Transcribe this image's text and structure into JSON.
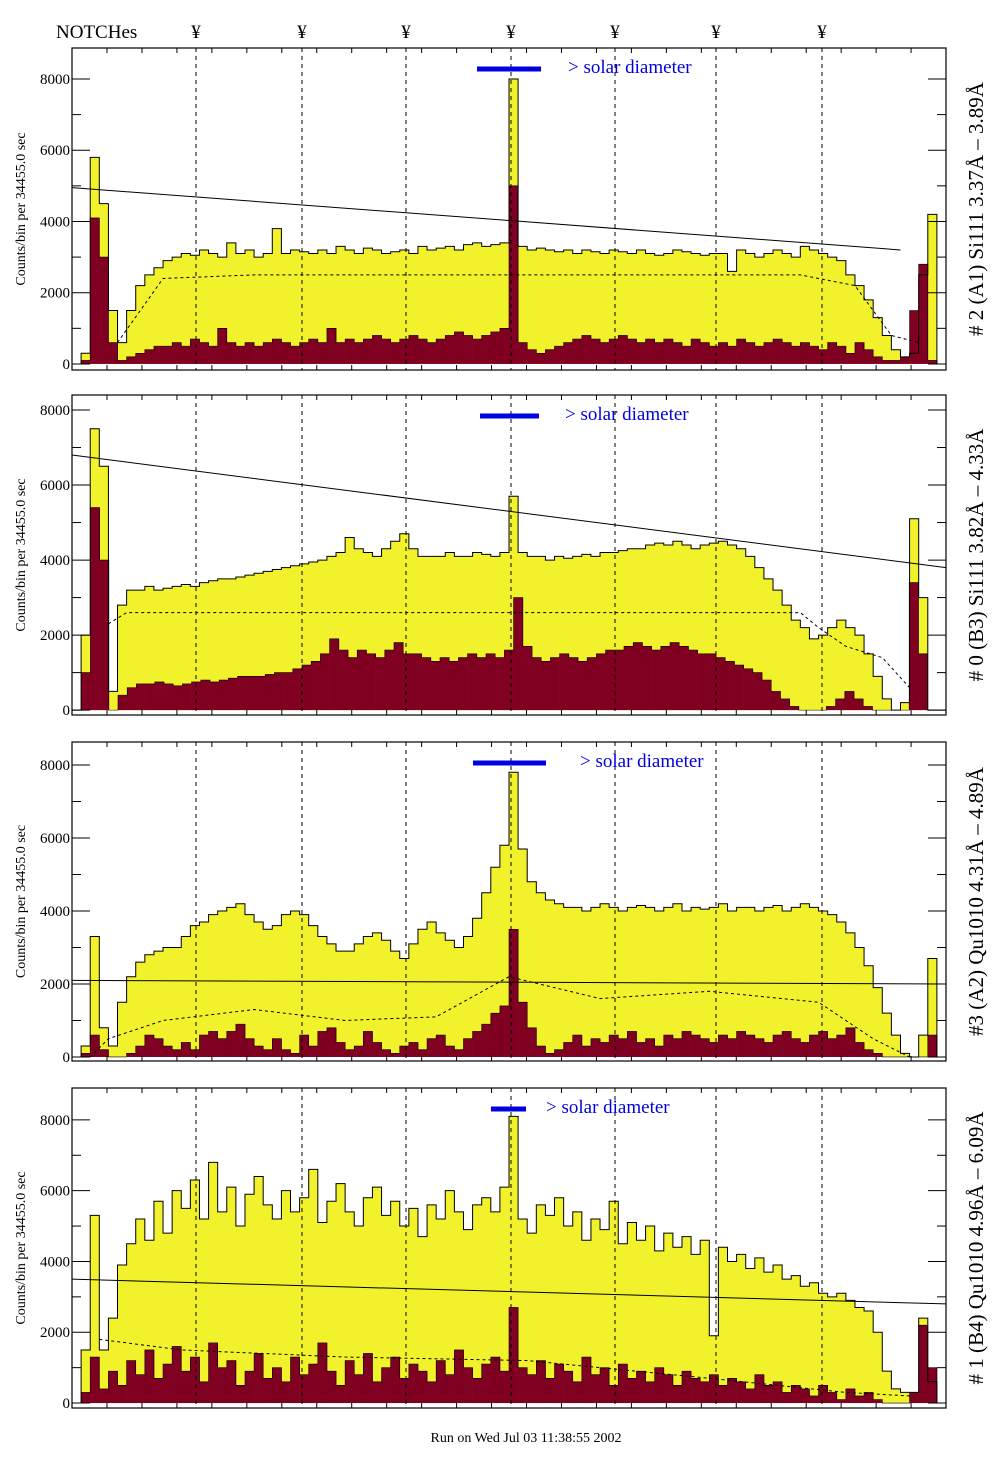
{
  "header": {
    "notches_label": "NOTCHes",
    "notch_symbol": "¥"
  },
  "footer": {
    "run_text": "Run on Wed Jul 03 11:38:55 2002"
  },
  "colors": {
    "total": "#f2f22c",
    "selected": "#7f0020",
    "solar_bar": "#0000e0"
  },
  "chart_data": [
    {
      "type": "bar",
      "panel_label": "# 2 (A1) Si111  3.37Å – 3.89Å",
      "ylabel": "Counts/bin per  34455.0 sec",
      "solar_label": "> solar diameter",
      "yticks": [
        "0",
        "2000",
        "4000",
        "6000",
        "8000"
      ],
      "ylim": [
        -170,
        8870
      ],
      "total": [
        0,
        300,
        5800,
        4500,
        1500,
        600,
        1500,
        2200,
        2500,
        2700,
        2900,
        3000,
        3100,
        3050,
        3200,
        3100,
        3000,
        3400,
        3100,
        3200,
        3000,
        3100,
        3800,
        3100,
        3200,
        3150,
        3100,
        3200,
        3100,
        3300,
        3200,
        3100,
        3250,
        3200,
        3100,
        3150,
        3200,
        3100,
        3300,
        3200,
        3250,
        3300,
        3200,
        3350,
        3400,
        3300,
        3350,
        3400,
        8000,
        3300,
        3200,
        3250,
        3200,
        3150,
        3200,
        3100,
        3200,
        3150,
        3100,
        3200,
        3150,
        3100,
        3200,
        3100,
        3050,
        3100,
        3200,
        3150,
        3100,
        3050,
        3100,
        3100,
        2600,
        3200,
        3100,
        3000,
        3100,
        3200,
        3100,
        3000,
        3300,
        3200,
        3100,
        3000,
        2900,
        2500,
        2200,
        1800,
        1300,
        800,
        400,
        200,
        300,
        2500,
        4200,
        0
      ],
      "selected": [
        0,
        100,
        4100,
        3000,
        600,
        100,
        200,
        300,
        400,
        500,
        500,
        600,
        500,
        700,
        600,
        500,
        1000,
        600,
        500,
        600,
        500,
        600,
        700,
        600,
        500,
        600,
        700,
        600,
        1000,
        600,
        700,
        600,
        700,
        800,
        700,
        600,
        700,
        800,
        700,
        600,
        700,
        800,
        900,
        800,
        700,
        800,
        900,
        1000,
        5000,
        600,
        400,
        300,
        400,
        500,
        600,
        700,
        800,
        700,
        600,
        700,
        800,
        700,
        600,
        700,
        600,
        700,
        600,
        500,
        700,
        600,
        500,
        600,
        500,
        700,
        600,
        500,
        600,
        700,
        600,
        500,
        600,
        500,
        400,
        600,
        500,
        300,
        600,
        400,
        200,
        100,
        100,
        200,
        1500,
        2800,
        100,
        0
      ],
      "fit_line": [
        [
          0,
          4950
        ],
        [
          91,
          3200
        ]
      ],
      "dashed_curve": [
        [
          5,
          600
        ],
        [
          10,
          2400
        ],
        [
          20,
          2500
        ],
        [
          50,
          2500
        ],
        [
          80,
          2500
        ],
        [
          86,
          2200
        ],
        [
          90,
          800
        ],
        [
          93,
          600
        ]
      ]
    },
    {
      "type": "bar",
      "panel_label": "# 0 (B3) Si111  3.82Å – 4.33Å",
      "ylabel": "Counts/bin per  34455.0 sec",
      "solar_label": "> solar diameter",
      "yticks": [
        "0",
        "2000",
        "4000",
        "6000",
        "8000"
      ],
      "ylim": [
        -130,
        8400
      ],
      "total": [
        0,
        2000,
        7500,
        6500,
        500,
        2800,
        3200,
        3200,
        3300,
        3200,
        3250,
        3300,
        3350,
        3300,
        3400,
        3450,
        3500,
        3500,
        3550,
        3600,
        3650,
        3700,
        3750,
        3800,
        3850,
        3900,
        3950,
        4000,
        4100,
        4200,
        4600,
        4300,
        4200,
        4100,
        4300,
        4500,
        4700,
        4300,
        4100,
        4100,
        4100,
        4200,
        4100,
        4100,
        4200,
        4150,
        4100,
        4200,
        5700,
        4200,
        4100,
        4100,
        4000,
        4100,
        4050,
        4100,
        4150,
        4100,
        4200,
        4200,
        4250,
        4300,
        4300,
        4400,
        4450,
        4400,
        4500,
        4400,
        4300,
        4400,
        4450,
        4500,
        4400,
        4300,
        4100,
        3800,
        3500,
        3200,
        2800,
        2400,
        2200,
        1900,
        2000,
        2200,
        2400,
        2200,
        2000,
        1500,
        900,
        300,
        0,
        200,
        5100,
        3000,
        0,
        0
      ],
      "selected": [
        0,
        1000,
        5400,
        4000,
        0,
        400,
        600,
        700,
        700,
        750,
        700,
        650,
        700,
        750,
        800,
        750,
        800,
        850,
        900,
        900,
        900,
        950,
        1000,
        1000,
        1100,
        1200,
        1300,
        1500,
        1900,
        1600,
        1400,
        1600,
        1500,
        1400,
        1600,
        1800,
        1500,
        1500,
        1400,
        1300,
        1400,
        1300,
        1400,
        1500,
        1400,
        1500,
        1400,
        1600,
        3000,
        1700,
        1400,
        1300,
        1400,
        1500,
        1400,
        1300,
        1400,
        1500,
        1600,
        1600,
        1700,
        1800,
        1700,
        1600,
        1700,
        1800,
        1700,
        1600,
        1500,
        1500,
        1400,
        1300,
        1200,
        1100,
        1000,
        800,
        500,
        300,
        100,
        0,
        0,
        0,
        100,
        300,
        500,
        300,
        100,
        0,
        0,
        0,
        0,
        3400,
        1500,
        0,
        0
      ],
      "fit_line": [
        [
          0,
          6800
        ],
        [
          96,
          3800
        ]
      ],
      "dashed_curve": [
        [
          4,
          2300
        ],
        [
          6,
          2600
        ],
        [
          40,
          2600
        ],
        [
          80,
          2600
        ],
        [
          82,
          2200
        ],
        [
          85,
          1700
        ],
        [
          89,
          1400
        ],
        [
          92,
          600
        ]
      ]
    },
    {
      "type": "bar",
      "panel_label": "#3 (A2) Qu1010  4.31Å – 4.89Å",
      "ylabel": "Counts/bin per  34455.0 sec",
      "solar_label": "> solar diameter",
      "yticks": [
        "0",
        "2000",
        "4000",
        "6000",
        "8000"
      ],
      "ylim": [
        -110,
        8630
      ],
      "total": [
        0,
        300,
        3300,
        800,
        300,
        1500,
        2200,
        2600,
        2800,
        2900,
        3000,
        3000,
        3300,
        3600,
        3700,
        3900,
        4000,
        4100,
        4200,
        3900,
        3700,
        3500,
        3600,
        3900,
        4000,
        3900,
        3600,
        3300,
        3100,
        2900,
        2900,
        3100,
        3300,
        3400,
        3200,
        2900,
        2700,
        3100,
        3500,
        3700,
        3400,
        3200,
        3000,
        3300,
        3800,
        4500,
        5200,
        5800,
        7800,
        5700,
        4800,
        4500,
        4300,
        4200,
        4100,
        4100,
        4000,
        4100,
        4200,
        4100,
        4000,
        4100,
        4150,
        4100,
        4000,
        4100,
        4200,
        4000,
        4100,
        4050,
        4100,
        4200,
        4000,
        4100,
        4100,
        4000,
        4100,
        4150,
        4000,
        4100,
        4200,
        4100,
        4000,
        3900,
        3700,
        3400,
        3000,
        2500,
        1900,
        1200,
        600,
        100,
        0,
        600,
        2700,
        0
      ],
      "selected": [
        0,
        100,
        600,
        200,
        0,
        0,
        100,
        300,
        600,
        500,
        300,
        200,
        400,
        200,
        600,
        700,
        500,
        700,
        900,
        500,
        300,
        200,
        500,
        200,
        100,
        600,
        300,
        700,
        800,
        400,
        200,
        300,
        700,
        400,
        200,
        100,
        300,
        400,
        200,
        500,
        600,
        300,
        200,
        500,
        700,
        900,
        1200,
        1400,
        3500,
        1500,
        800,
        300,
        100,
        200,
        400,
        600,
        300,
        500,
        400,
        600,
        500,
        700,
        400,
        500,
        300,
        600,
        500,
        700,
        600,
        500,
        400,
        600,
        500,
        700,
        600,
        500,
        400,
        600,
        700,
        500,
        400,
        600,
        700,
        500,
        600,
        800,
        400,
        200,
        100,
        0,
        0,
        0,
        0,
        0,
        600,
        0
      ],
      "fit_line": [
        [
          0,
          2100
        ],
        [
          96,
          2000
        ]
      ],
      "dashed_curve": [
        [
          2,
          0
        ],
        [
          4,
          500
        ],
        [
          10,
          1000
        ],
        [
          20,
          1300
        ],
        [
          30,
          1000
        ],
        [
          40,
          1100
        ],
        [
          48,
          2200
        ],
        [
          58,
          1600
        ],
        [
          70,
          1800
        ],
        [
          82,
          1500
        ],
        [
          88,
          500
        ],
        [
          92,
          0
        ]
      ]
    },
    {
      "type": "bar",
      "panel_label": "# 1 (B4) Qu1010 4.96Å – 6.09Å",
      "ylabel": "Counts/bin per  34455.0 sec",
      "solar_label": "> solar diameter",
      "yticks": [
        "0",
        "2000",
        "4000",
        "6000",
        "8000"
      ],
      "ylim": [
        -140,
        8900
      ],
      "total": [
        0,
        1500,
        5300,
        1500,
        2400,
        3900,
        4500,
        5200,
        4600,
        5700,
        4800,
        6000,
        5500,
        6300,
        5200,
        6800,
        5400,
        6100,
        5000,
        5900,
        6400,
        5600,
        5200,
        6000,
        5400,
        5800,
        6600,
        5100,
        5700,
        6200,
        5400,
        5000,
        5800,
        6100,
        5300,
        5700,
        5000,
        5500,
        4700,
        5600,
        5200,
        6000,
        5400,
        4900,
        5600,
        5800,
        5400,
        6100,
        8100,
        5200,
        4800,
        5600,
        5300,
        5800,
        5000,
        5400,
        4600,
        5200,
        4900,
        5700,
        4500,
        5100,
        4600,
        5000,
        4300,
        4800,
        4400,
        4700,
        4200,
        4600,
        1900,
        4400,
        4000,
        4200,
        3800,
        4100,
        3700,
        3900,
        3500,
        3600,
        3300,
        3400,
        3100,
        3000,
        3100,
        2900,
        2700,
        2600,
        2000,
        900,
        400,
        300,
        300,
        2400,
        600,
        0
      ],
      "selected": [
        0,
        300,
        1300,
        400,
        900,
        500,
        1200,
        800,
        1500,
        700,
        1100,
        1600,
        900,
        1300,
        600,
        1700,
        1000,
        1200,
        500,
        900,
        1400,
        700,
        1000,
        600,
        1300,
        800,
        1100,
        1700,
        900,
        500,
        1200,
        800,
        1400,
        600,
        1000,
        1300,
        700,
        1100,
        900,
        600,
        1200,
        800,
        1500,
        1000,
        700,
        1100,
        1300,
        900,
        2700,
        1000,
        800,
        1200,
        700,
        1100,
        900,
        600,
        1300,
        800,
        1000,
        500,
        1100,
        700,
        900,
        600,
        1000,
        800,
        500,
        900,
        700,
        600,
        800,
        500,
        700,
        600,
        400,
        800,
        500,
        600,
        300,
        500,
        400,
        200,
        500,
        300,
        100,
        400,
        200,
        300,
        100,
        0,
        0,
        0,
        300,
        2200,
        1000,
        0
      ],
      "fit_line": [
        [
          0,
          3500
        ],
        [
          96,
          2800
        ]
      ],
      "dashed_curve": [
        [
          3,
          1800
        ],
        [
          12,
          1500
        ],
        [
          30,
          1300
        ],
        [
          50,
          1200
        ],
        [
          70,
          700
        ],
        [
          85,
          300
        ],
        [
          92,
          200
        ]
      ]
    }
  ]
}
